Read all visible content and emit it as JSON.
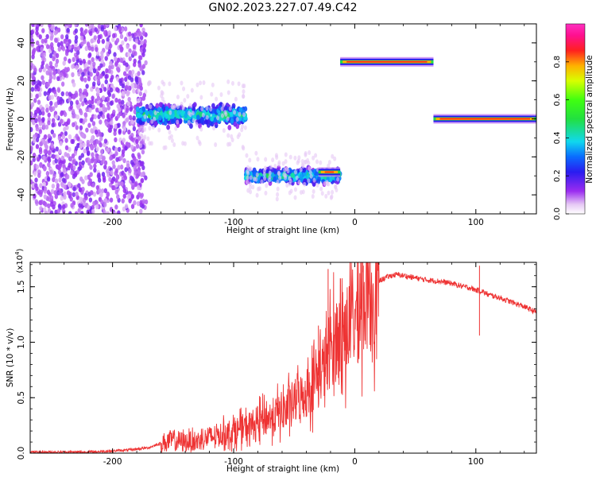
{
  "figure": {
    "title": "GN02.2023.227.07.49.C42"
  },
  "chart_data": [
    {
      "type": "heatmap",
      "title": "GN02.2023.227.07.49.C42",
      "xlabel": "Height of straight line (km)",
      "ylabel": "Frequency (Hz)",
      "xlim": [
        -268,
        150
      ],
      "ylim": [
        -50,
        50
      ],
      "x_ticks": [
        -200,
        -100,
        0,
        100
      ],
      "x_tick_labels": [
        "-200",
        "-100",
        "0",
        "100"
      ],
      "y_ticks": [
        -40,
        -20,
        0,
        20,
        40
      ],
      "y_tick_labels": [
        "-40",
        "-20",
        "0",
        "20",
        "40"
      ],
      "colorbar": {
        "label": "Normalized spectral amplitude",
        "range": [
          0,
          1
        ],
        "ticks": [
          0.0,
          0.2,
          0.4,
          0.6,
          0.8
        ],
        "tick_labels": [
          "0.0",
          "0.2",
          "0.4",
          "0.6",
          "0.8"
        ],
        "colormap": "rainbow (white-violet-blue-cyan-green-yellow-red-magenta)"
      },
      "segments": [
        {
          "x_range": [
            -268,
            -180
          ],
          "frequency_center": 0,
          "frequency_spread": 50,
          "amplitude": "low (noise)"
        },
        {
          "x_range": [
            -180,
            -90
          ],
          "frequency_center": 2,
          "frequency_spread": 7,
          "amplitude": "medium"
        },
        {
          "x_range": [
            -90,
            -12
          ],
          "frequency_center": -30,
          "frequency_spread": 5,
          "amplitude": "medium"
        },
        {
          "x_range": [
            -30,
            -12
          ],
          "frequency_center": -28,
          "frequency_spread": 1,
          "amplitude": "high"
        },
        {
          "x_range": [
            -12,
            65
          ],
          "frequency_center": 30,
          "frequency_spread": 1,
          "amplitude": "high"
        },
        {
          "x_range": [
            65,
            150
          ],
          "frequency_center": 0,
          "frequency_spread": 1,
          "amplitude": "high"
        }
      ]
    },
    {
      "type": "line",
      "xlabel": "Height of straight line (km)",
      "ylabel": "SNR (10 * v/v)",
      "y_multiplier_label": "(x10",
      "y_multiplier_exponent": "4",
      "y_multiplier_suffix": ")",
      "xlim": [
        -268,
        150
      ],
      "ylim": [
        0,
        1.72
      ],
      "x_ticks": [
        -200,
        -100,
        0,
        100
      ],
      "x_tick_labels": [
        "-200",
        "-100",
        "0",
        "100"
      ],
      "y_ticks": [
        0.0,
        0.5,
        1.0,
        1.5
      ],
      "y_tick_labels": [
        "0.0",
        "0.5",
        "1.0",
        "1.5"
      ],
      "series": [
        {
          "color": "#ee3333",
          "x": [
            -268,
            -240,
            -220,
            -200,
            -185,
            -170,
            -160,
            -150,
            -140,
            -130,
            -120,
            -110,
            -100,
            -90,
            -80,
            -70,
            -60,
            -50,
            -40,
            -35,
            -30,
            -25,
            -20,
            -15,
            -10,
            -5,
            0,
            5,
            10,
            15,
            20,
            25,
            30,
            35,
            40,
            50,
            60,
            70,
            80,
            90,
            95,
            100,
            105,
            110,
            120,
            130,
            140,
            150
          ],
          "y": [
            0.01,
            0.01,
            0.01,
            0.02,
            0.03,
            0.05,
            0.09,
            0.12,
            0.1,
            0.11,
            0.14,
            0.17,
            0.2,
            0.23,
            0.28,
            0.32,
            0.38,
            0.46,
            0.55,
            0.62,
            0.7,
            0.8,
            0.95,
            1.02,
            1.08,
            1.15,
            1.2,
            1.3,
            1.42,
            1.5,
            1.55,
            1.58,
            1.6,
            1.61,
            1.6,
            1.58,
            1.56,
            1.55,
            1.53,
            1.5,
            1.49,
            1.47,
            1.46,
            1.43,
            1.4,
            1.36,
            1.32,
            1.27
          ],
          "spikes": [
            [
              -30,
              1.15
            ],
            [
              -22,
              1.66
            ],
            [
              -15,
              1.35
            ],
            [
              5,
              1.72
            ],
            [
              103,
              1.06
            ],
            [
              103,
              1.69
            ]
          ]
        }
      ]
    }
  ]
}
